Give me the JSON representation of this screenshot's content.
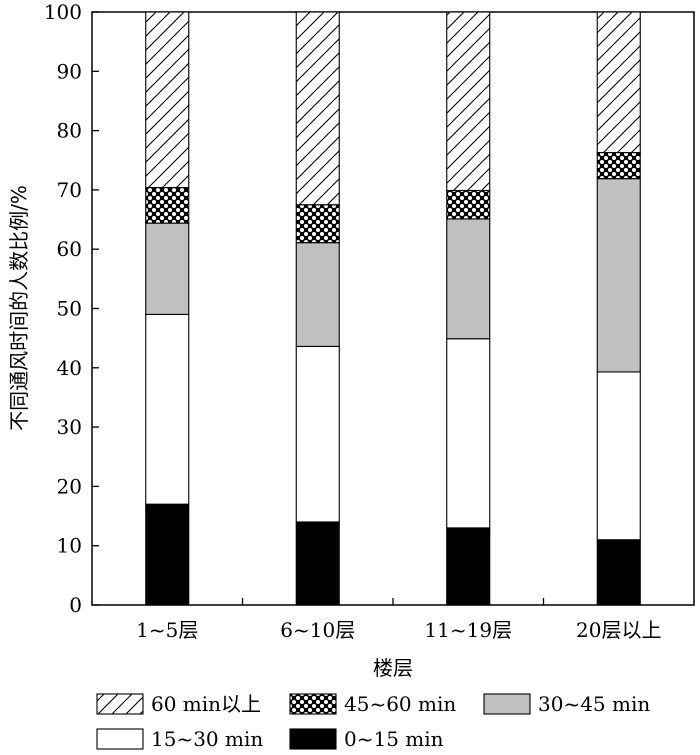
{
  "colors": {
    "axis": "#000000",
    "gray_fill": "#c0c0c0",
    "black_fill": "#000000",
    "white_fill": "#ffffff"
  },
  "chart_data": {
    "type": "bar",
    "stacked": true,
    "categories": [
      "1~5层",
      "6~10层",
      "11~19层",
      "20层以上"
    ],
    "xlabel": "楼层",
    "ylabel": "不同通风时间的人数比例/%",
    "ylim": [
      0,
      100
    ],
    "yticks": [
      0,
      10,
      20,
      30,
      40,
      50,
      60,
      70,
      80,
      90,
      100
    ],
    "legend_position": "bottom",
    "series": [
      {
        "name": "0~15 min",
        "pattern": "solid-black",
        "values": [
          17,
          14,
          13,
          11
        ]
      },
      {
        "name": "15~30 min",
        "pattern": "white",
        "values": [
          32,
          29.6,
          31.9,
          28.3
        ]
      },
      {
        "name": "30~45 min",
        "pattern": "gray",
        "values": [
          15.4,
          17.5,
          20.2,
          32.6
        ]
      },
      {
        "name": "45~60 min",
        "pattern": "dots",
        "values": [
          6,
          6.4,
          4.8,
          4.4
        ]
      },
      {
        "name": "60 min以上",
        "pattern": "hatch",
        "values": [
          29.6,
          32.5,
          30.1,
          23.7
        ]
      }
    ],
    "legend_order": [
      "60 min以上",
      "45~60 min",
      "30~45 min",
      "15~30 min",
      "0~15 min"
    ]
  }
}
